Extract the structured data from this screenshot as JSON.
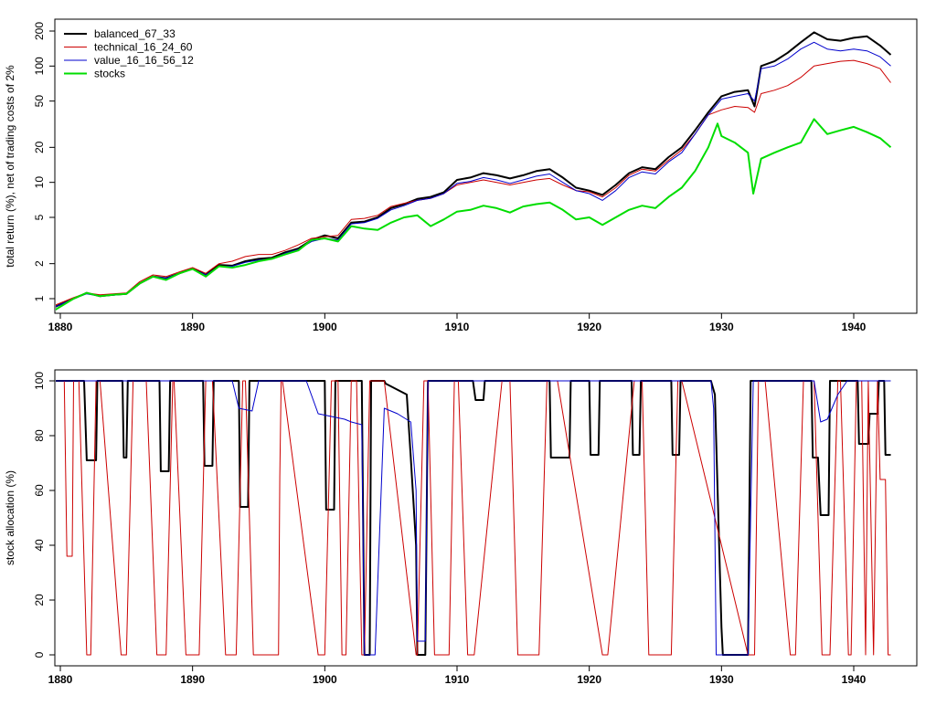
{
  "chart_data": [
    {
      "type": "line",
      "ylabel": "total return (%), net of trading costs of 2%",
      "xlabel": "",
      "yscale": "log",
      "xlim": [
        1880,
        1943
      ],
      "ylim": [
        0.8,
        220
      ],
      "xticks": [
        1880,
        1890,
        1900,
        1910,
        1920,
        1930,
        1940
      ],
      "yticks": [
        1,
        2,
        5,
        10,
        20,
        50,
        100,
        200
      ],
      "legend_position": "top-left",
      "series": [
        {
          "name": "balanced_67_33",
          "color": "#000000",
          "x": [
            1879.6,
            1881,
            1882,
            1883,
            1884,
            1885,
            1886,
            1887,
            1888,
            1889,
            1890,
            1891,
            1892,
            1893,
            1894,
            1895,
            1896,
            1897,
            1898,
            1899,
            1900,
            1901,
            1902,
            1903,
            1904,
            1905,
            1906,
            1907,
            1908,
            1909,
            1910,
            1911,
            1912,
            1913,
            1914,
            1915,
            1916,
            1917,
            1918,
            1919,
            1920,
            1921,
            1922,
            1923,
            1924,
            1925,
            1926,
            1927,
            1928,
            1929,
            1930,
            1931,
            1932,
            1932.5,
            1933,
            1934,
            1935,
            1936,
            1937,
            1938,
            1939,
            1940,
            1941,
            1942,
            1942.8
          ],
          "y": [
            0.85,
            1.0,
            1.12,
            1.05,
            1.08,
            1.1,
            1.35,
            1.55,
            1.5,
            1.65,
            1.82,
            1.6,
            1.95,
            1.92,
            2.1,
            2.2,
            2.25,
            2.5,
            2.7,
            3.2,
            3.5,
            3.3,
            4.5,
            4.6,
            5.0,
            6.0,
            6.5,
            7.2,
            7.5,
            8.2,
            10.5,
            11.0,
            12.0,
            11.5,
            10.8,
            11.5,
            12.5,
            13.0,
            11.0,
            9.0,
            8.5,
            7.8,
            9.5,
            12.0,
            13.5,
            13.0,
            16.5,
            20.0,
            28.0,
            40.0,
            55.0,
            60.0,
            62.0,
            45.0,
            100.0,
            110.0,
            130.0,
            160.0,
            195.0,
            170.0,
            165.0,
            175.0,
            180.0,
            150.0,
            125.0
          ]
        },
        {
          "name": "technical_16_24_60",
          "color": "#cc0000",
          "x": [
            1879.6,
            1881,
            1882,
            1883,
            1884,
            1885,
            1886,
            1887,
            1888,
            1889,
            1890,
            1891,
            1892,
            1893,
            1894,
            1895,
            1896,
            1897,
            1898,
            1899,
            1900,
            1901,
            1902,
            1903,
            1904,
            1905,
            1906,
            1907,
            1908,
            1909,
            1910,
            1911,
            1912,
            1913,
            1914,
            1915,
            1916,
            1917,
            1918,
            1919,
            1920,
            1921,
            1922,
            1923,
            1924,
            1925,
            1926,
            1927,
            1928,
            1929,
            1930,
            1931,
            1932,
            1932.5,
            1933,
            1934,
            1935,
            1936,
            1937,
            1938,
            1939,
            1940,
            1941,
            1942,
            1942.8
          ],
          "y": [
            0.88,
            1.02,
            1.12,
            1.08,
            1.1,
            1.12,
            1.4,
            1.6,
            1.55,
            1.7,
            1.85,
            1.65,
            2.0,
            2.1,
            2.3,
            2.4,
            2.4,
            2.6,
            2.9,
            3.3,
            3.4,
            3.5,
            4.8,
            4.9,
            5.2,
            6.2,
            6.6,
            7.0,
            7.3,
            8.0,
            9.5,
            10.0,
            10.5,
            10.0,
            9.5,
            10.0,
            10.5,
            10.8,
            9.5,
            8.5,
            8.3,
            7.5,
            9.0,
            11.5,
            13.0,
            12.5,
            15.5,
            19.0,
            26.0,
            38.0,
            42.0,
            45.0,
            44.0,
            40.0,
            58.0,
            62.0,
            68.0,
            80.0,
            100.0,
            105.0,
            110.0,
            112.0,
            105.0,
            95.0,
            72.0
          ]
        },
        {
          "name": "value_16_16_56_12",
          "color": "#0000cc",
          "x": [
            1879.6,
            1881,
            1882,
            1883,
            1884,
            1885,
            1886,
            1887,
            1888,
            1889,
            1890,
            1891,
            1892,
            1893,
            1894,
            1895,
            1896,
            1897,
            1898,
            1899,
            1900,
            1901,
            1902,
            1903,
            1904,
            1905,
            1906,
            1907,
            1908,
            1909,
            1910,
            1911,
            1912,
            1913,
            1914,
            1915,
            1916,
            1917,
            1918,
            1919,
            1920,
            1921,
            1922,
            1923,
            1924,
            1925,
            1926,
            1927,
            1928,
            1929,
            1930,
            1931,
            1932,
            1932.5,
            1933,
            1934,
            1935,
            1936,
            1937,
            1938,
            1939,
            1940,
            1941,
            1942,
            1942.8
          ],
          "y": [
            0.85,
            1.0,
            1.1,
            1.05,
            1.07,
            1.1,
            1.35,
            1.55,
            1.5,
            1.65,
            1.8,
            1.6,
            1.9,
            1.9,
            2.05,
            2.15,
            2.2,
            2.45,
            2.65,
            3.1,
            3.3,
            3.2,
            4.4,
            4.5,
            4.9,
            5.8,
            6.3,
            7.0,
            7.3,
            8.0,
            9.8,
            10.2,
            11.0,
            10.5,
            9.8,
            10.5,
            11.3,
            11.8,
            10.0,
            8.5,
            8.0,
            7.0,
            8.5,
            11.0,
            12.3,
            11.8,
            15.0,
            18.0,
            26.0,
            38.0,
            52.0,
            55.0,
            58.0,
            50.0,
            95.0,
            100.0,
            115.0,
            140.0,
            160.0,
            140.0,
            135.0,
            140.0,
            135.0,
            120.0,
            100.0
          ]
        },
        {
          "name": "stocks",
          "color": "#00dd00",
          "x": [
            1879.6,
            1881,
            1882,
            1883,
            1884,
            1885,
            1886,
            1887,
            1888,
            1889,
            1890,
            1891,
            1892,
            1893,
            1894,
            1895,
            1896,
            1897,
            1898,
            1899,
            1900,
            1901,
            1902,
            1903,
            1904,
            1905,
            1906,
            1907,
            1908,
            1909,
            1910,
            1911,
            1912,
            1913,
            1914,
            1915,
            1916,
            1917,
            1918,
            1919,
            1920,
            1921,
            1922,
            1923,
            1924,
            1925,
            1926,
            1927,
            1928,
            1929,
            1929.7,
            1930,
            1931,
            1932,
            1932.4,
            1933,
            1934,
            1935,
            1936,
            1937,
            1938,
            1939,
            1940,
            1941,
            1942,
            1942.8
          ],
          "y": [
            0.8,
            1.0,
            1.12,
            1.05,
            1.08,
            1.1,
            1.35,
            1.55,
            1.45,
            1.65,
            1.8,
            1.55,
            1.9,
            1.85,
            1.95,
            2.1,
            2.2,
            2.4,
            2.6,
            3.2,
            3.3,
            3.1,
            4.2,
            4.0,
            3.9,
            4.5,
            5.0,
            5.2,
            4.2,
            4.8,
            5.6,
            5.8,
            6.3,
            6.0,
            5.5,
            6.2,
            6.5,
            6.7,
            5.8,
            4.8,
            5.0,
            4.3,
            5.0,
            5.8,
            6.3,
            6.0,
            7.5,
            9.0,
            12.5,
            20.0,
            32.0,
            25.0,
            22.0,
            18.0,
            8.0,
            16.0,
            18.0,
            20.0,
            22.0,
            35.0,
            26.0,
            28.0,
            30.0,
            27.0,
            24.0,
            20.0
          ]
        }
      ]
    },
    {
      "type": "line",
      "ylabel": "stock allocation (%)",
      "xlabel": "",
      "xlim": [
        1880,
        1943
      ],
      "ylim": [
        0,
        100
      ],
      "xticks": [
        1880,
        1890,
        1900,
        1910,
        1920,
        1930,
        1940
      ],
      "yticks": [
        0,
        20,
        40,
        60,
        80,
        100
      ],
      "series": [
        {
          "name": "",
          "color": "#000000",
          "x": [
            1879.6,
            1881.8,
            1882.0,
            1882.7,
            1882.8,
            1884.7,
            1884.8,
            1885.0,
            1885.1,
            1887.5,
            1887.6,
            1888.2,
            1888.3,
            1890.8,
            1890.9,
            1891.5,
            1891.6,
            1893.5,
            1893.6,
            1894.2,
            1894.3,
            1900.0,
            1900.1,
            1900.7,
            1900.8,
            1902.8,
            1903.0,
            1903.4,
            1903.5,
            1904.5,
            1904.6,
            1906.2,
            1906.5,
            1906.9,
            1907.0,
            1907.6,
            1907.8,
            1911.2,
            1911.4,
            1912.0,
            1912.1,
            1913.8,
            1913.9,
            1917.0,
            1917.1,
            1918.5,
            1918.6,
            1920.0,
            1920.1,
            1920.7,
            1920.8,
            1923.2,
            1923.3,
            1923.8,
            1923.9,
            1926.2,
            1926.3,
            1926.8,
            1926.9,
            1929.2,
            1929.5,
            1930.0,
            1930.1,
            1932.0,
            1932.2,
            1936.8,
            1936.9,
            1937.3,
            1937.5,
            1938.1,
            1938.2,
            1940.3,
            1940.4,
            1941.1,
            1941.2,
            1941.8,
            1941.9,
            1942.3,
            1942.4,
            1942.8
          ],
          "y": [
            100,
            100,
            71,
            71,
            100,
            100,
            72,
            72,
            100,
            100,
            67,
            67,
            100,
            100,
            69,
            69,
            100,
            100,
            54,
            54,
            100,
            100,
            53,
            53,
            100,
            100,
            0,
            0,
            100,
            100,
            99,
            95,
            72,
            40,
            0,
            0,
            100,
            100,
            93,
            93,
            100,
            100,
            100,
            100,
            72,
            72,
            100,
            100,
            73,
            73,
            100,
            100,
            73,
            73,
            100,
            100,
            73,
            73,
            100,
            100,
            95,
            10,
            0,
            0,
            100,
            100,
            72,
            72,
            51,
            51,
            100,
            100,
            77,
            77,
            88,
            88,
            100,
            100,
            73,
            73
          ]
        },
        {
          "name": "",
          "color": "#cc0000",
          "x": [
            1879.6,
            1880.3,
            1880.5,
            1880.9,
            1881.0,
            1881.4,
            1882.0,
            1882.3,
            1882.7,
            1883.0,
            1884.6,
            1885.0,
            1885.5,
            1886.5,
            1887.3,
            1888.0,
            1888.5,
            1888.6,
            1889.5,
            1890.5,
            1891.0,
            1891.5,
            1892.5,
            1893.3,
            1893.8,
            1894.0,
            1894.6,
            1896.5,
            1896.6,
            1896.7,
            1896.8,
            1899.5,
            1900.0,
            1900.5,
            1901.0,
            1901.3,
            1901.6,
            1902.0,
            1902.4,
            1902.8,
            1903.0,
            1903.4,
            1903.6,
            1904.3,
            1904.5,
            1906.9,
            1907.0,
            1907.5,
            1907.8,
            1908.3,
            1909.4,
            1909.8,
            1910.1,
            1910.8,
            1911.3,
            1913.4,
            1914.0,
            1914.6,
            1916.2,
            1916.8,
            1917.5,
            1917.6,
            1921.0,
            1921.4,
            1923.4,
            1924.0,
            1924.5,
            1926.2,
            1926.7,
            1927.0,
            1932.0,
            1932.5,
            1932.8,
            1933.3,
            1935.2,
            1935.6,
            1936.2,
            1937.0,
            1937.6,
            1938.2,
            1938.8,
            1939.0,
            1939.6,
            1939.8,
            1940.2,
            1940.6,
            1940.9,
            1941.1,
            1941.5,
            1941.8,
            1942.0,
            1942.4,
            1942.6,
            1942.8
          ],
          "y": [
            100,
            100,
            36,
            36,
            100,
            100,
            0,
            0,
            100,
            100,
            0,
            0,
            100,
            100,
            0,
            0,
            100,
            100,
            0,
            0,
            100,
            100,
            0,
            0,
            100,
            100,
            0,
            0,
            65,
            100,
            100,
            0,
            0,
            100,
            100,
            0,
            0,
            100,
            100,
            0,
            0,
            100,
            100,
            100,
            100,
            0,
            0,
            100,
            100,
            0,
            0,
            100,
            100,
            0,
            0,
            100,
            100,
            0,
            0,
            100,
            100,
            100,
            0,
            0,
            100,
            100,
            0,
            0,
            100,
            100,
            0,
            0,
            100,
            100,
            0,
            0,
            100,
            100,
            0,
            0,
            100,
            100,
            0,
            0,
            100,
            100,
            0,
            100,
            0,
            100,
            64,
            64,
            0,
            0
          ]
        },
        {
          "name": "",
          "color": "#0000cc",
          "x": [
            1879.6,
            1882.6,
            1885.0,
            1893.0,
            1893.5,
            1894.5,
            1895.0,
            1898.6,
            1899.5,
            1900.5,
            1901.5,
            1902.0,
            1902.8,
            1903.0,
            1903.4,
            1903.8,
            1904.5,
            1905.5,
            1906.5,
            1906.9,
            1907.0,
            1907.6,
            1907.8,
            1929.2,
            1929.4,
            1929.6,
            1932.0,
            1932.4,
            1933.0,
            1933.5,
            1937.0,
            1937.5,
            1938.0,
            1938.8,
            1939.5,
            1942.8
          ],
          "y": [
            100,
            100,
            100,
            100,
            90,
            89,
            100,
            100,
            88,
            87,
            86,
            85,
            84,
            0,
            0,
            0,
            90,
            88,
            85,
            60,
            5,
            5,
            100,
            100,
            90,
            0,
            0,
            100,
            100,
            100,
            100,
            85,
            86,
            95,
            100,
            100
          ]
        }
      ]
    }
  ]
}
